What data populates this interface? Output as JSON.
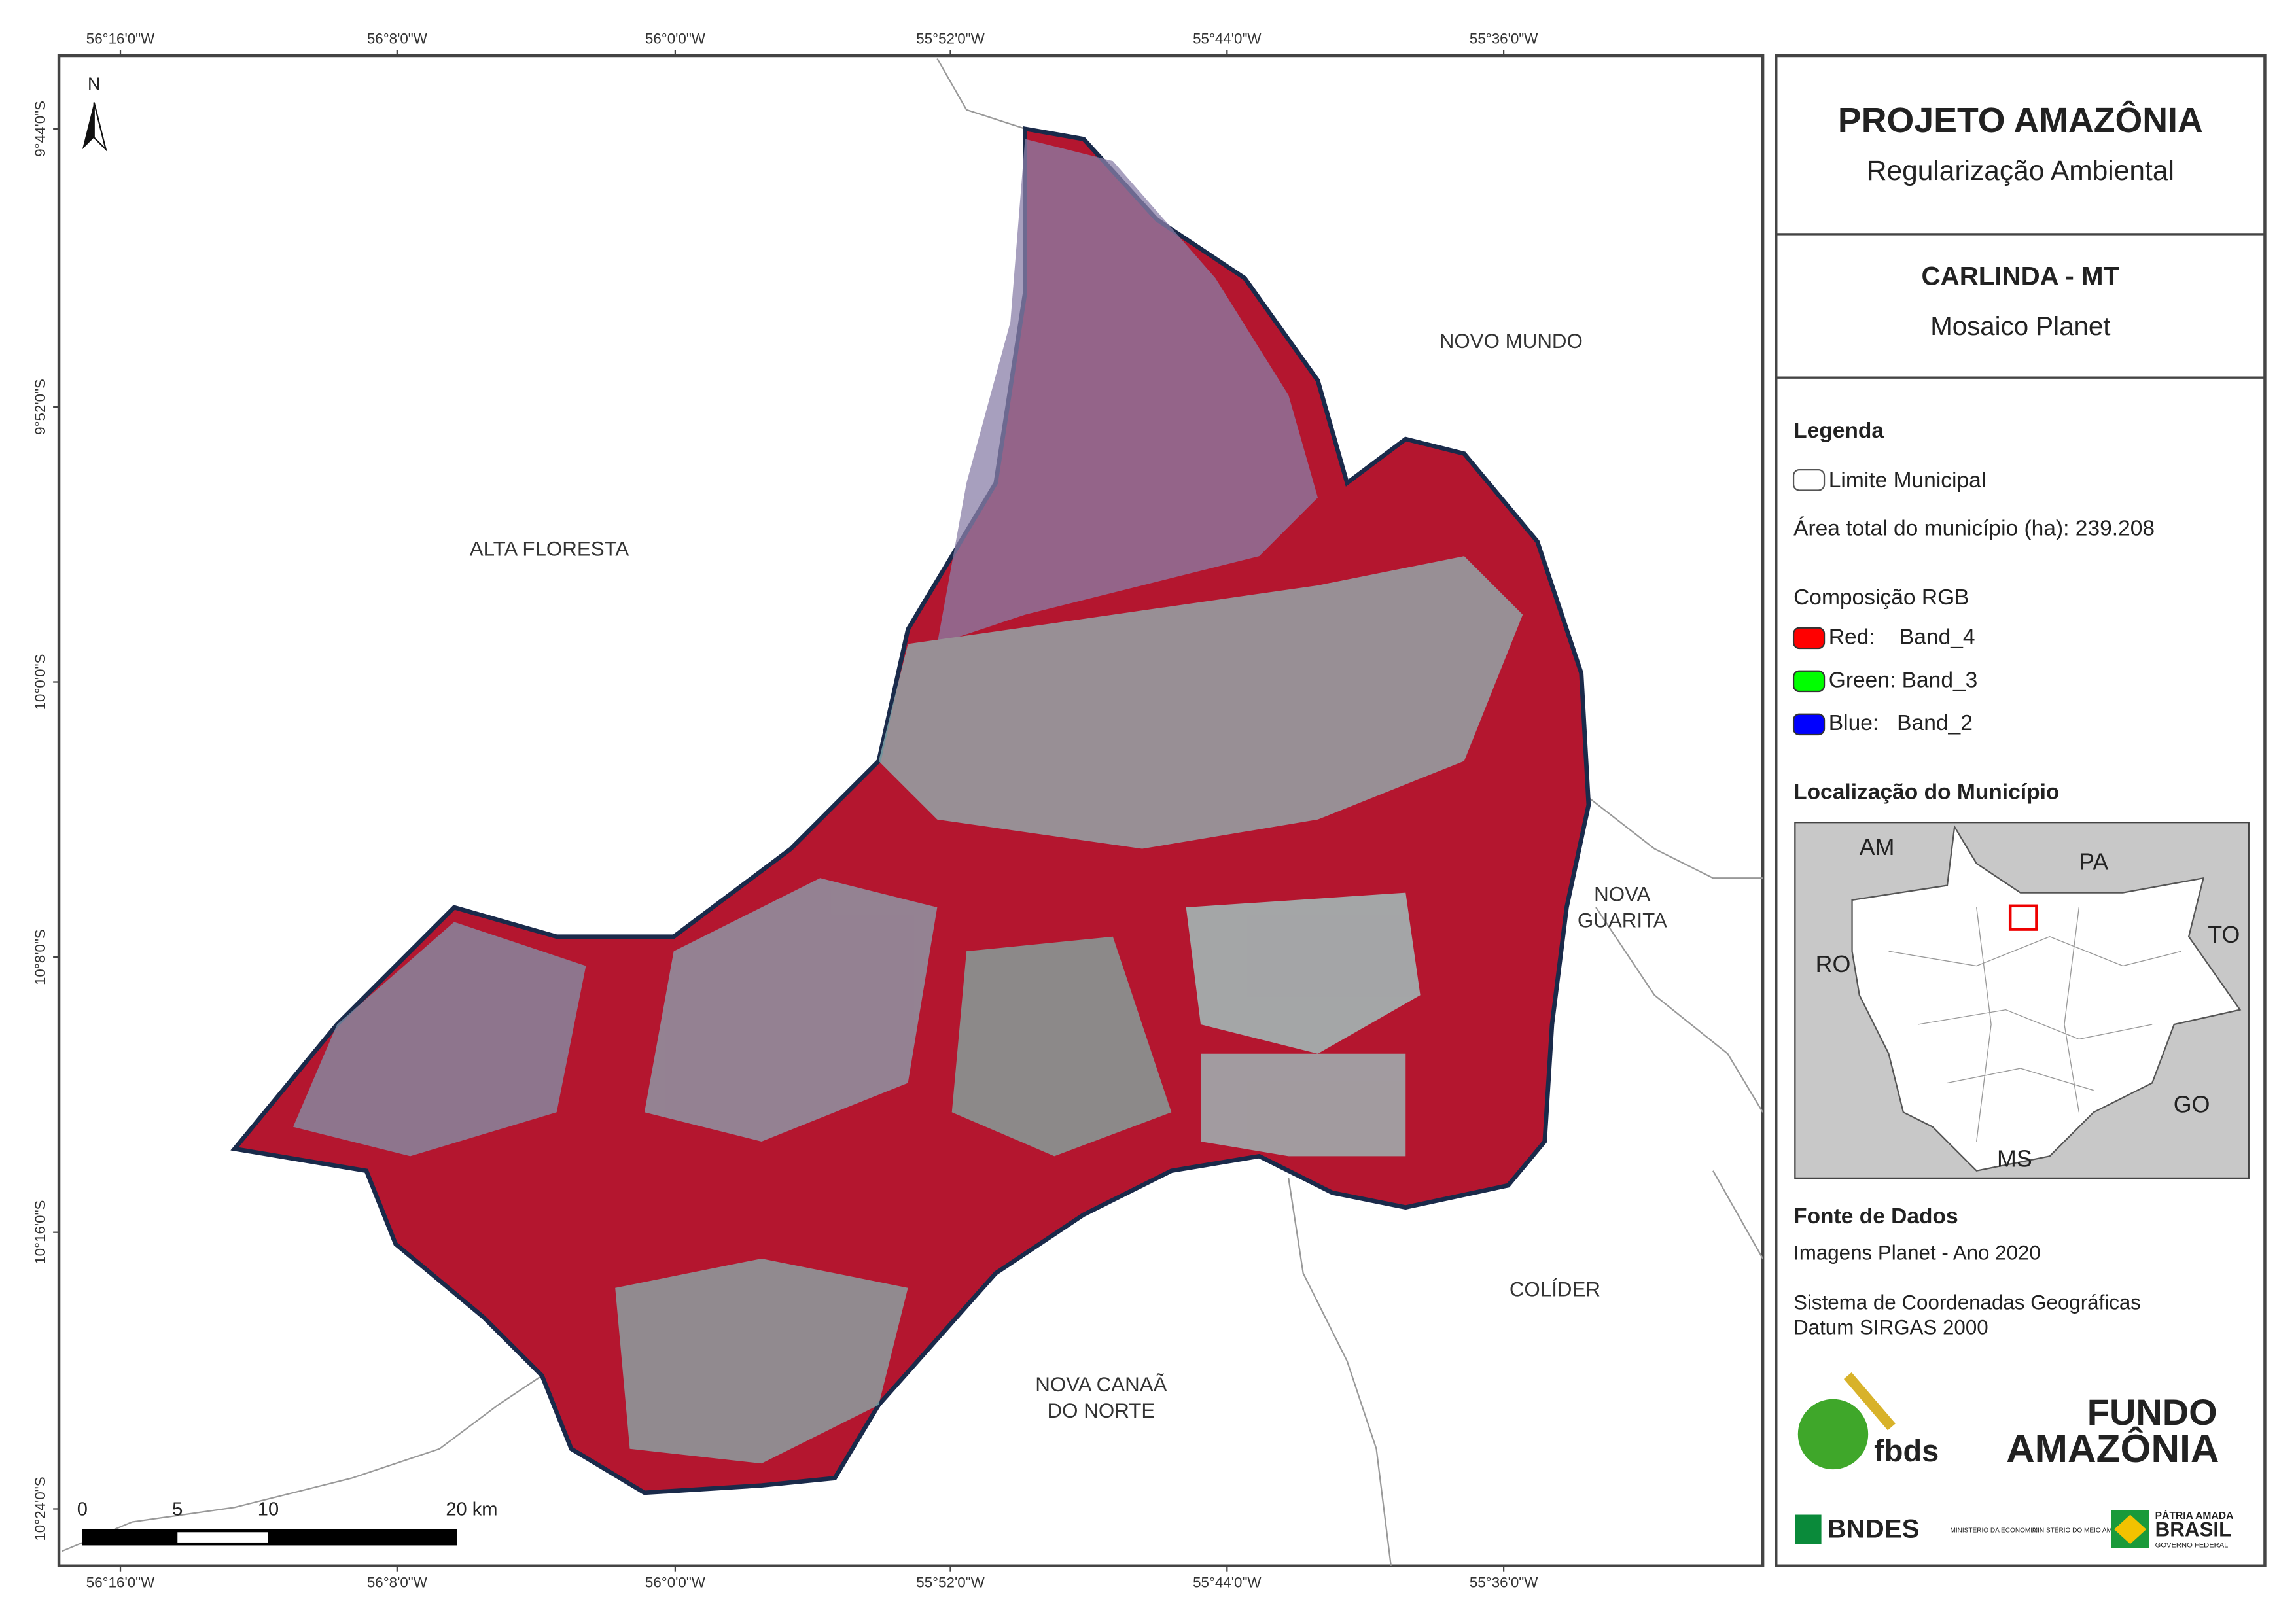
{
  "map": {
    "top_ticks": [
      "56°16'0\"W",
      "56°8'0\"W",
      "56°0'0\"W",
      "55°52'0\"W",
      "55°44'0\"W",
      "55°36'0\"W"
    ],
    "bottom_ticks": [
      "56°16'0\"W",
      "56°8'0\"W",
      "56°0'0\"W",
      "55°52'0\"W",
      "55°44'0\"W",
      "55°36'0\"W"
    ],
    "left_ticks": [
      "9°44'0\"S",
      "9°52'0\"S",
      "10°0'0\"S",
      "10°8'0\"S",
      "10°16'0\"S",
      "10°24'0\"S"
    ],
    "north": "N",
    "places": [
      {
        "lines": [
          "ALTA FLORESTA"
        ]
      },
      {
        "lines": [
          "NOVO MUNDO"
        ]
      },
      {
        "lines": [
          "NOVA",
          "GUARITA"
        ]
      },
      {
        "lines": [
          "COLÍDER"
        ]
      },
      {
        "lines": [
          "NOVA CANAÃ",
          "DO NORTE"
        ]
      }
    ],
    "scale_labels": [
      "0",
      "5",
      "10",
      "20 km"
    ]
  },
  "header": {
    "title": "PROJETO AMAZÔNIA",
    "subtitle": "Regularização Ambiental"
  },
  "municipality": {
    "name": "CARLINDA - MT",
    "subtitle": "Mosaico Planet"
  },
  "legend": {
    "title": "Legenda",
    "boundary": "Limite Municipal",
    "area": "Área total do município (ha): 239.208",
    "rgb_title": "Composição RGB",
    "bands": [
      {
        "label": "Red:    Band_4",
        "color": "#ff0000"
      },
      {
        "label": "Green: Band_3",
        "color": "#00ff00"
      },
      {
        "label": "Blue:   Band_2",
        "color": "#0000ff"
      }
    ]
  },
  "location": {
    "title": "Localização do Município",
    "states": [
      "AM",
      "PA",
      "TO",
      "RO",
      "GO",
      "MS"
    ]
  },
  "sources": {
    "title": "Fonte de Dados",
    "lines": [
      "Imagens Planet - Ano 2020",
      "Sistema de Coordenadas Geográficas",
      "Datum SIRGAS 2000"
    ]
  },
  "logos": {
    "fbds": "fbds",
    "fundo1": "FUNDO",
    "fundo2": "AMAZÔNIA",
    "bndes": "BNDES",
    "min1": "MINISTÉRIO DA ECONOMIA",
    "min2": "MINISTÉRIO DO MEIO AMBIENTE",
    "patria": "PÁTRIA AMADA",
    "brasil": "BRASIL",
    "gov": "GOVERNO FEDERAL"
  }
}
